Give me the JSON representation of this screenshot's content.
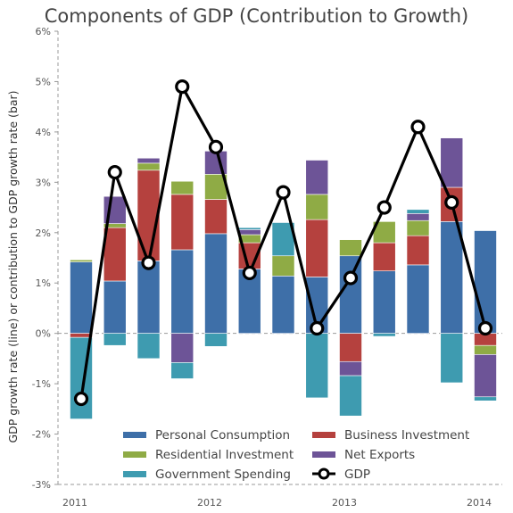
{
  "chart_data": {
    "type": "bar",
    "title": "Components of GDP (Contribution to Growth)",
    "ylabel": "GDP growth rate (line) or contribution to GDP growth rate (bar)",
    "xlabel": "",
    "ylim": [
      -3,
      6
    ],
    "y_ticks": [
      "-3%",
      "-2%",
      "-1%",
      "0%",
      "1%",
      "2%",
      "3%",
      "4%",
      "5%",
      "6%"
    ],
    "x_tick_labels": [
      "2011",
      "2012",
      "2013",
      "2014"
    ],
    "stacked": true,
    "quarters": [
      "2011 Q1",
      "2011 Q2",
      "2011 Q3",
      "2011 Q4",
      "2012 Q1",
      "2012 Q2",
      "2012 Q3",
      "2012 Q4",
      "2013 Q1",
      "2013 Q2",
      "2013 Q3",
      "2013 Q4",
      "2014 Q1"
    ],
    "series": [
      {
        "name": "Personal Consumption",
        "color": "#3e6fa8",
        "kind": "bar",
        "values": [
          1.42,
          1.04,
          1.44,
          1.66,
          1.98,
          1.28,
          1.14,
          1.12,
          1.54,
          1.24,
          1.36,
          2.22,
          2.04
        ]
      },
      {
        "name": "Business Investment",
        "color": "#b5413e",
        "kind": "bar",
        "values": [
          -0.08,
          1.06,
          1.8,
          1.1,
          0.68,
          0.52,
          0.0,
          1.14,
          -0.56,
          0.56,
          0.58,
          0.68,
          -0.24
        ]
      },
      {
        "name": "Residential Investment",
        "color": "#8fab45",
        "kind": "bar",
        "values": [
          0.04,
          0.08,
          0.14,
          0.26,
          0.5,
          0.16,
          0.4,
          0.5,
          0.32,
          0.42,
          0.3,
          0.0,
          -0.18
        ]
      },
      {
        "name": "Net Exports",
        "color": "#6d5497",
        "kind": "bar",
        "values": [
          0.0,
          0.54,
          0.1,
          -0.58,
          0.46,
          0.1,
          0.0,
          0.68,
          -0.28,
          0.0,
          0.14,
          0.98,
          -0.84
        ]
      },
      {
        "name": "Government Spending",
        "color": "#3e9bb0",
        "kind": "bar",
        "values": [
          -1.62,
          -0.24,
          -0.5,
          -0.32,
          -0.26,
          0.04,
          0.66,
          -1.28,
          -0.8,
          -0.06,
          0.08,
          -0.98,
          -0.08
        ]
      },
      {
        "name": "GDP",
        "color": "#000000",
        "kind": "line",
        "values": [
          -1.3,
          3.2,
          1.4,
          4.9,
          3.7,
          1.2,
          2.8,
          0.1,
          1.1,
          2.5,
          4.1,
          2.6,
          0.1
        ]
      }
    ],
    "legend_order": [
      "Personal Consumption",
      "Business Investment",
      "Residential Investment",
      "Net Exports",
      "Government Spending",
      "GDP"
    ],
    "legend_position": "bottom-inside",
    "grid": false
  }
}
